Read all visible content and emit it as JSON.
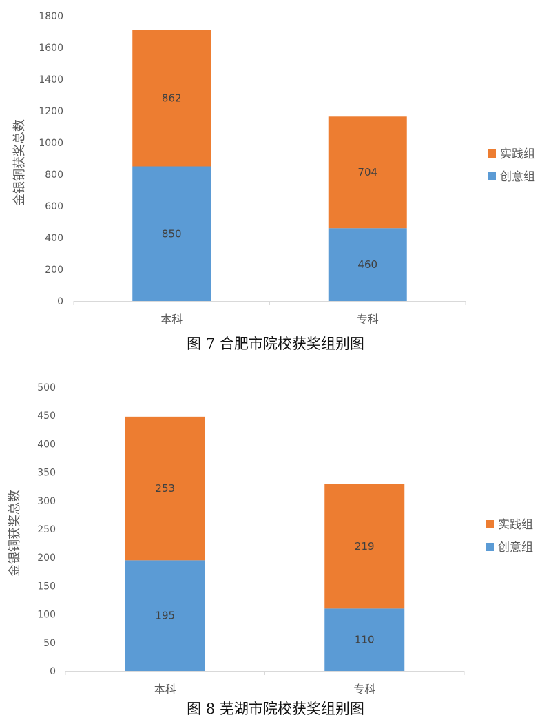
{
  "colors": {
    "practice": "#ed7d31",
    "creative": "#5b9bd5",
    "axis": "#d9d9d9",
    "text": "#595959",
    "data_label": "#404040"
  },
  "chart_data": [
    {
      "type": "bar",
      "stacked": true,
      "caption": "图 7  合肥市院校获奖组别图",
      "ylabel": "金银铜获奖总数",
      "xlabel": "",
      "ylim": [
        0,
        1800
      ],
      "yticks": [
        0,
        200,
        400,
        600,
        800,
        1000,
        1200,
        1400,
        1600,
        1800
      ],
      "grid": false,
      "legend_position": "right",
      "categories": [
        "本科",
        "专科"
      ],
      "series": [
        {
          "name": "创意组",
          "values": [
            850,
            460
          ],
          "color": "#5b9bd5"
        },
        {
          "name": "实践组",
          "values": [
            862,
            704
          ],
          "color": "#ed7d31"
        }
      ],
      "legend": [
        "实践组",
        "创意组"
      ]
    },
    {
      "type": "bar",
      "stacked": true,
      "caption": "图 8  芜湖市院校获奖组别图",
      "ylabel": "金银铜获奖总数",
      "xlabel": "",
      "ylim": [
        0,
        500
      ],
      "yticks": [
        0,
        50,
        100,
        150,
        200,
        250,
        300,
        350,
        400,
        450,
        500
      ],
      "grid": false,
      "legend_position": "right",
      "categories": [
        "本科",
        "专科"
      ],
      "series": [
        {
          "name": "创意组",
          "values": [
            195,
            110
          ],
          "color": "#5b9bd5"
        },
        {
          "name": "实践组",
          "values": [
            253,
            219
          ],
          "color": "#ed7d31"
        }
      ],
      "legend": [
        "实践组",
        "创意组"
      ]
    }
  ]
}
